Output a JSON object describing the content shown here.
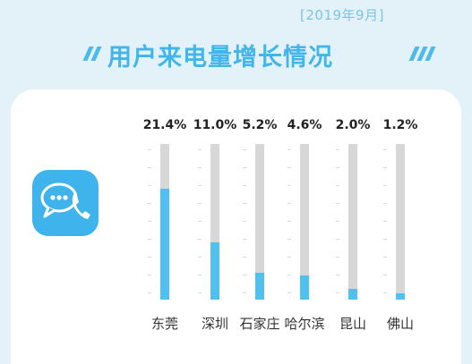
{
  "header": {
    "date": "[2019年9月]",
    "title": "用户来电量增长情况"
  },
  "accent_colors": {
    "bar": "#4fc0f0",
    "track": "#d7d7d7",
    "title": "#42b6ea"
  },
  "icon": "phone-chat-icon",
  "chart_data": {
    "type": "bar",
    "categories": [
      "东莞",
      "深圳",
      "石家庄",
      "哈尔滨",
      "昆山",
      "佛山"
    ],
    "value_labels": [
      "21.4%",
      "11.0%",
      "5.2%",
      "4.6%",
      "2.0%",
      "1.2%"
    ],
    "values": [
      21.4,
      11.0,
      5.2,
      4.6,
      2.0,
      1.2
    ],
    "ylim": [
      0,
      30
    ],
    "grid": false,
    "legend": "none"
  }
}
